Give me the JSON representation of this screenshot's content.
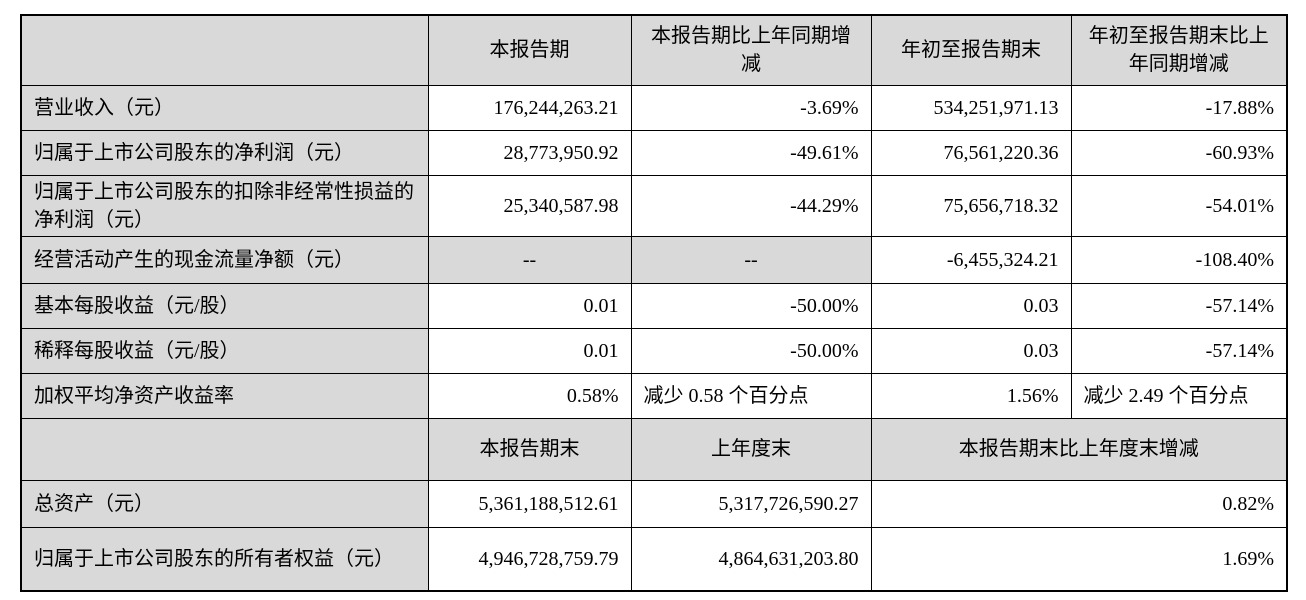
{
  "colors": {
    "shaded_cell_bg": "#d9d9d9",
    "border": "#000000",
    "page_bg": "#ffffff",
    "text": "#000000"
  },
  "table": {
    "header_top": {
      "col2": "本报告期",
      "col3": "本报告期比上年同期增减",
      "col4": "年初至报告期末",
      "col5": "年初至报告期末比上年同期增减"
    },
    "body_rows": [
      {
        "label": "营业收入（元）",
        "values": [
          "176,244,263.21",
          "-3.69%",
          "534,251,971.13",
          "-17.88%"
        ]
      },
      {
        "label": "归属于上市公司股东的净利润（元）",
        "values": [
          "28,773,950.92",
          "-49.61%",
          "76,561,220.36",
          "-60.93%"
        ]
      },
      {
        "label": "归属于上市公司股东的扣除非经常性损益的净利润（元）",
        "values": [
          "25,340,587.98",
          "-44.29%",
          "75,656,718.32",
          "-54.01%"
        ]
      },
      {
        "label": "经营活动产生的现金流量净额（元）",
        "values": [
          "--",
          "--",
          "-6,455,324.21",
          "-108.40%"
        ]
      },
      {
        "label": "基本每股收益（元/股）",
        "values": [
          "0.01",
          "-50.00%",
          "0.03",
          "-57.14%"
        ]
      },
      {
        "label": "稀释每股收益（元/股）",
        "values": [
          "0.01",
          "-50.00%",
          "0.03",
          "-57.14%"
        ]
      },
      {
        "label": "加权平均净资产收益率",
        "values": [
          "0.58%",
          "减少 0.58 个百分点",
          "1.56%",
          "减少 2.49 个百分点"
        ]
      }
    ],
    "header_mid": {
      "col2": "本报告期末",
      "col3": "上年度末",
      "col45": "本报告期末比上年度末增减"
    },
    "footer_rows": [
      {
        "label": "总资产（元）",
        "values": [
          "5,361,188,512.61",
          "5,317,726,590.27",
          "0.82%"
        ]
      },
      {
        "label": "归属于上市公司股东的所有者权益（元）",
        "values": [
          "4,946,728,759.79",
          "4,864,631,203.80",
          "1.69%"
        ]
      }
    ]
  }
}
